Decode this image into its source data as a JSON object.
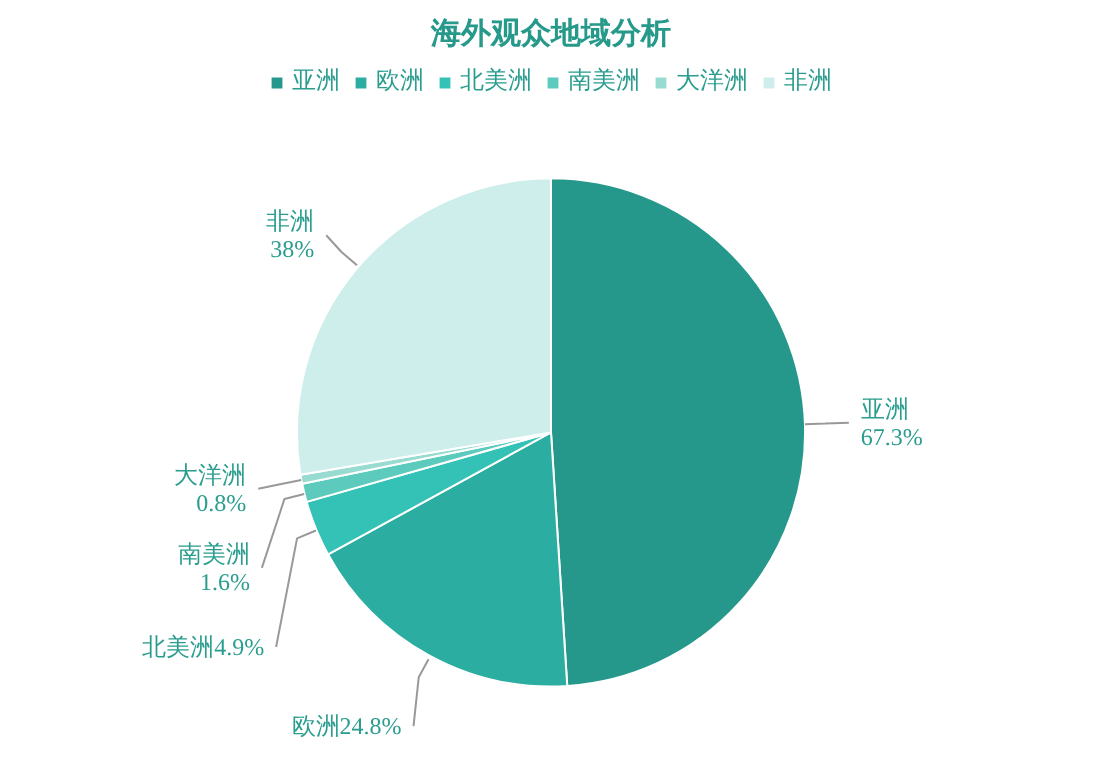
{
  "chart_data": {
    "type": "pie",
    "title": "海外观众地域分析",
    "categories": [
      "亚洲",
      "欧洲",
      "北美洲",
      "南美洲",
      "大洋洲",
      "非洲"
    ],
    "values": [
      67.3,
      24.8,
      4.9,
      1.6,
      0.8,
      38
    ],
    "value_labels": [
      "67.3%",
      "24.8%",
      "4.9%",
      "1.6%",
      "0.8%",
      "38%"
    ],
    "colors": [
      "#25988b",
      "#2cada1",
      "#33c2b5",
      "#5ccbbd",
      "#97dbd1",
      "#cdeeea"
    ],
    "legend": "top"
  }
}
